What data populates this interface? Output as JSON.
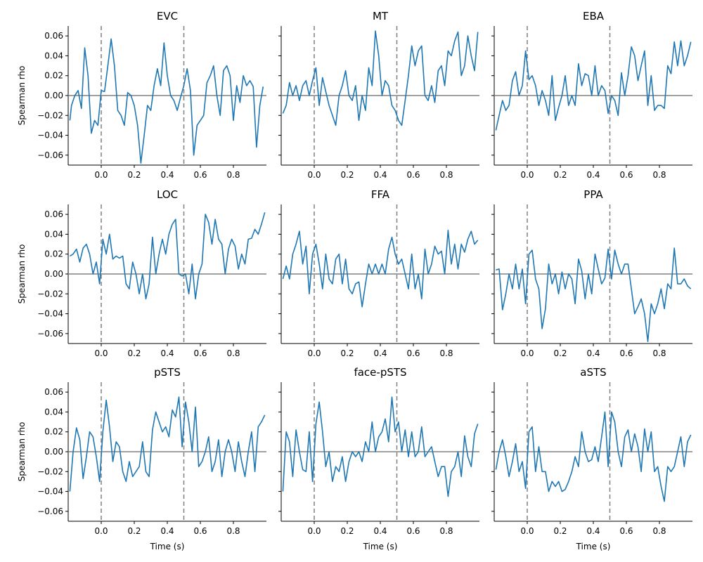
{
  "chart_data": {
    "type": "line",
    "layout": "3x3 grid of subplots, shared y axis, shared x axis",
    "xlabel": "Time (s)",
    "ylabel": "Spearman rho",
    "xlim": [
      -0.2,
      1.0
    ],
    "ylim": [
      -0.07,
      0.07
    ],
    "xticks": [
      0.0,
      0.2,
      0.4,
      0.6,
      0.8
    ],
    "xtick_labels": [
      "0.0",
      "0.2",
      "0.4",
      "0.6",
      "0.8"
    ],
    "yticks": [
      -0.06,
      -0.04,
      -0.02,
      0.0,
      0.02,
      0.04,
      0.06
    ],
    "ytick_labels": [
      "−0.06",
      "−0.04",
      "−0.02",
      "0.00",
      "0.02",
      "0.04",
      "0.06"
    ],
    "reference_line_y": 0.0,
    "event_lines_x": [
      0.0,
      0.5
    ],
    "grid": false,
    "colors": {
      "line": "#1f77b4",
      "reference": "#808080",
      "event": "#808080"
    },
    "panels": [
      {
        "title": "EVC",
        "x": [
          -0.19,
          -0.18,
          -0.16,
          -0.14,
          -0.12,
          -0.1,
          -0.08,
          -0.06,
          -0.04,
          -0.02,
          0.0,
          0.02,
          0.04,
          0.06,
          0.08,
          0.1,
          0.12,
          0.14,
          0.16,
          0.18,
          0.2,
          0.22,
          0.24,
          0.26,
          0.28,
          0.3,
          0.32,
          0.34,
          0.36,
          0.38,
          0.4,
          0.42,
          0.44,
          0.46,
          0.48,
          0.5,
          0.52,
          0.54,
          0.56,
          0.58,
          0.6,
          0.62,
          0.64,
          0.66,
          0.68,
          0.7,
          0.72,
          0.74,
          0.76,
          0.78,
          0.8,
          0.82,
          0.84,
          0.86,
          0.88,
          0.9,
          0.92,
          0.94,
          0.96,
          0.98
        ],
        "y": [
          -0.025,
          -0.01,
          0.0,
          0.005,
          -0.013,
          0.048,
          0.02,
          -0.038,
          -0.025,
          -0.03,
          0.005,
          0.004,
          0.03,
          0.057,
          0.03,
          -0.015,
          -0.02,
          -0.03,
          0.003,
          0.0,
          -0.01,
          -0.03,
          -0.068,
          -0.04,
          -0.01,
          -0.015,
          0.01,
          0.027,
          0.01,
          0.053,
          0.02,
          0.0,
          -0.005,
          -0.015,
          -0.002,
          0.01,
          0.027,
          0.005,
          -0.06,
          -0.03,
          -0.025,
          -0.02,
          0.013,
          0.02,
          0.03,
          0.0,
          -0.02,
          0.025,
          0.03,
          0.02,
          -0.025,
          0.01,
          -0.007,
          0.02,
          0.01,
          0.015,
          0.009,
          -0.052,
          -0.01,
          0.009
        ]
      },
      {
        "title": "MT",
        "x": [
          -0.19,
          -0.17,
          -0.15,
          -0.13,
          -0.11,
          -0.09,
          -0.07,
          -0.05,
          -0.03,
          -0.01,
          0.01,
          0.03,
          0.05,
          0.07,
          0.09,
          0.11,
          0.13,
          0.15,
          0.17,
          0.19,
          0.21,
          0.23,
          0.25,
          0.27,
          0.29,
          0.31,
          0.33,
          0.35,
          0.37,
          0.39,
          0.41,
          0.43,
          0.45,
          0.47,
          0.49,
          0.51,
          0.53,
          0.55,
          0.57,
          0.59,
          0.61,
          0.63,
          0.65,
          0.67,
          0.69,
          0.71,
          0.73,
          0.75,
          0.77,
          0.79,
          0.81,
          0.83,
          0.85,
          0.87,
          0.89,
          0.91,
          0.93,
          0.95,
          0.97,
          0.99
        ],
        "y": [
          -0.018,
          -0.01,
          0.013,
          0.0,
          0.01,
          -0.005,
          0.01,
          0.015,
          0.0,
          0.015,
          0.028,
          -0.01,
          0.018,
          0.004,
          -0.01,
          -0.02,
          -0.03,
          0.0,
          0.01,
          0.025,
          0.0,
          -0.005,
          0.01,
          -0.025,
          0.0,
          -0.015,
          0.028,
          0.01,
          0.065,
          0.04,
          0.0,
          0.015,
          0.01,
          -0.01,
          -0.015,
          -0.025,
          -0.03,
          -0.005,
          0.02,
          0.05,
          0.03,
          0.045,
          0.05,
          0.0,
          -0.005,
          0.01,
          -0.007,
          0.025,
          0.03,
          0.01,
          0.045,
          0.04,
          0.055,
          0.064,
          0.02,
          0.03,
          0.06,
          0.04,
          0.025,
          0.064
        ]
      },
      {
        "title": "EBA",
        "x": [
          -0.19,
          -0.17,
          -0.15,
          -0.13,
          -0.11,
          -0.09,
          -0.07,
          -0.05,
          -0.03,
          -0.01,
          0.01,
          0.03,
          0.05,
          0.07,
          0.09,
          0.11,
          0.13,
          0.15,
          0.17,
          0.19,
          0.21,
          0.23,
          0.25,
          0.27,
          0.29,
          0.31,
          0.33,
          0.35,
          0.37,
          0.39,
          0.41,
          0.43,
          0.45,
          0.47,
          0.49,
          0.51,
          0.53,
          0.55,
          0.57,
          0.59,
          0.61,
          0.63,
          0.65,
          0.67,
          0.69,
          0.71,
          0.73,
          0.75,
          0.77,
          0.79,
          0.81,
          0.83,
          0.85,
          0.87,
          0.89,
          0.91,
          0.93,
          0.95,
          0.97,
          0.99
        ],
        "y": [
          -0.035,
          -0.02,
          -0.005,
          -0.015,
          -0.01,
          0.015,
          0.024,
          0.0,
          0.01,
          0.045,
          0.016,
          0.02,
          0.01,
          -0.01,
          0.005,
          -0.005,
          -0.02,
          0.02,
          -0.025,
          -0.012,
          0.0,
          0.02,
          -0.01,
          0.0,
          -0.01,
          0.032,
          0.01,
          0.022,
          0.02,
          0.0,
          0.03,
          0.0,
          0.01,
          0.005,
          -0.018,
          0.0,
          -0.005,
          -0.02,
          0.023,
          0.0,
          0.02,
          0.049,
          0.04,
          0.015,
          0.03,
          0.045,
          -0.01,
          0.02,
          -0.015,
          -0.01,
          -0.01,
          -0.013,
          0.03,
          0.022,
          0.054,
          0.03,
          0.055,
          0.03,
          0.04,
          0.054
        ]
      },
      {
        "title": "LOC",
        "x": [
          -0.19,
          -0.17,
          -0.15,
          -0.13,
          -0.11,
          -0.09,
          -0.07,
          -0.05,
          -0.03,
          -0.01,
          0.01,
          0.03,
          0.05,
          0.07,
          0.09,
          0.11,
          0.13,
          0.15,
          0.17,
          0.19,
          0.21,
          0.23,
          0.25,
          0.27,
          0.29,
          0.31,
          0.33,
          0.35,
          0.37,
          0.39,
          0.41,
          0.43,
          0.45,
          0.47,
          0.49,
          0.51,
          0.53,
          0.55,
          0.57,
          0.59,
          0.61,
          0.63,
          0.65,
          0.67,
          0.69,
          0.71,
          0.73,
          0.75,
          0.77,
          0.79,
          0.81,
          0.83,
          0.85,
          0.87,
          0.89,
          0.91,
          0.93,
          0.95,
          0.97,
          0.99
        ],
        "y": [
          0.018,
          0.02,
          0.025,
          0.012,
          0.026,
          0.03,
          0.02,
          0.0,
          0.012,
          -0.01,
          0.035,
          0.02,
          0.04,
          0.015,
          0.018,
          0.016,
          0.018,
          -0.01,
          -0.015,
          0.012,
          0.0,
          -0.02,
          0.0,
          -0.025,
          -0.01,
          0.037,
          0.0,
          0.02,
          0.035,
          0.02,
          0.04,
          0.05,
          0.055,
          0.0,
          -0.002,
          0.0,
          -0.02,
          0.01,
          -0.025,
          0.0,
          0.01,
          0.06,
          0.052,
          0.03,
          0.055,
          0.035,
          0.03,
          0.0,
          0.025,
          0.035,
          0.028,
          0.005,
          0.02,
          0.01,
          0.035,
          0.036,
          0.045,
          0.04,
          0.05,
          0.062
        ]
      },
      {
        "title": "FFA",
        "x": [
          -0.19,
          -0.17,
          -0.15,
          -0.13,
          -0.11,
          -0.09,
          -0.07,
          -0.05,
          -0.03,
          -0.01,
          0.01,
          0.03,
          0.05,
          0.07,
          0.09,
          0.11,
          0.13,
          0.15,
          0.17,
          0.19,
          0.21,
          0.23,
          0.25,
          0.27,
          0.29,
          0.31,
          0.33,
          0.35,
          0.37,
          0.39,
          0.41,
          0.43,
          0.45,
          0.47,
          0.49,
          0.51,
          0.53,
          0.55,
          0.57,
          0.59,
          0.61,
          0.63,
          0.65,
          0.67,
          0.69,
          0.71,
          0.73,
          0.75,
          0.77,
          0.79,
          0.81,
          0.83,
          0.85,
          0.87,
          0.89,
          0.91,
          0.93,
          0.95,
          0.97,
          0.99
        ],
        "y": [
          -0.005,
          0.008,
          -0.005,
          0.02,
          0.03,
          0.043,
          0.01,
          0.028,
          -0.02,
          0.02,
          0.03,
          0.01,
          -0.015,
          0.02,
          -0.005,
          -0.01,
          0.015,
          0.02,
          -0.01,
          0.015,
          -0.015,
          -0.02,
          -0.01,
          -0.008,
          -0.033,
          -0.01,
          0.01,
          0.0,
          0.01,
          0.0,
          0.01,
          0.0,
          0.025,
          0.037,
          0.02,
          0.01,
          0.015,
          0.0,
          -0.015,
          0.02,
          -0.015,
          0.0,
          -0.025,
          0.025,
          0.0,
          0.01,
          0.028,
          0.02,
          0.023,
          0.0,
          0.044,
          0.01,
          0.03,
          0.005,
          0.03,
          0.022,
          0.035,
          0.043,
          0.03,
          0.034
        ]
      },
      {
        "title": "PPA",
        "x": [
          -0.19,
          -0.17,
          -0.15,
          -0.13,
          -0.11,
          -0.09,
          -0.07,
          -0.05,
          -0.03,
          -0.01,
          0.01,
          0.03,
          0.05,
          0.07,
          0.09,
          0.11,
          0.13,
          0.15,
          0.17,
          0.19,
          0.21,
          0.23,
          0.25,
          0.27,
          0.29,
          0.31,
          0.33,
          0.35,
          0.37,
          0.39,
          0.41,
          0.43,
          0.45,
          0.47,
          0.49,
          0.51,
          0.53,
          0.55,
          0.57,
          0.59,
          0.61,
          0.63,
          0.65,
          0.67,
          0.69,
          0.71,
          0.73,
          0.75,
          0.77,
          0.79,
          0.81,
          0.83,
          0.85,
          0.87,
          0.89,
          0.91,
          0.93,
          0.95,
          0.97,
          0.99
        ],
        "y": [
          0.004,
          0.005,
          -0.036,
          -0.02,
          0.0,
          -0.015,
          0.01,
          -0.015,
          0.005,
          -0.03,
          0.02,
          0.024,
          -0.005,
          -0.015,
          -0.055,
          -0.035,
          0.01,
          -0.01,
          0.0,
          -0.02,
          0.002,
          -0.015,
          0.0,
          -0.005,
          -0.03,
          0.015,
          0.003,
          -0.025,
          0.0,
          -0.02,
          0.02,
          0.005,
          -0.01,
          -0.004,
          0.025,
          -0.005,
          0.024,
          0.01,
          0.0,
          0.01,
          0.01,
          -0.015,
          -0.04,
          -0.033,
          -0.025,
          -0.04,
          -0.068,
          -0.03,
          -0.04,
          -0.03,
          -0.015,
          -0.035,
          -0.01,
          -0.015,
          0.026,
          -0.01,
          -0.01,
          -0.005,
          -0.012,
          -0.015
        ]
      },
      {
        "title": "pSTS",
        "x": [
          -0.19,
          -0.17,
          -0.15,
          -0.13,
          -0.11,
          -0.09,
          -0.07,
          -0.05,
          -0.03,
          -0.01,
          0.01,
          0.03,
          0.05,
          0.07,
          0.09,
          0.11,
          0.13,
          0.15,
          0.17,
          0.19,
          0.21,
          0.23,
          0.25,
          0.27,
          0.29,
          0.31,
          0.33,
          0.35,
          0.37,
          0.39,
          0.41,
          0.43,
          0.45,
          0.47,
          0.49,
          0.51,
          0.53,
          0.55,
          0.57,
          0.59,
          0.61,
          0.63,
          0.65,
          0.67,
          0.69,
          0.71,
          0.73,
          0.75,
          0.77,
          0.79,
          0.81,
          0.83,
          0.85,
          0.87,
          0.89,
          0.91,
          0.93,
          0.95,
          0.97,
          0.99
        ],
        "y": [
          -0.04,
          0.0,
          0.024,
          0.012,
          -0.027,
          -0.005,
          0.02,
          0.015,
          -0.005,
          -0.03,
          0.02,
          0.052,
          0.025,
          -0.01,
          0.01,
          0.005,
          -0.02,
          -0.03,
          -0.01,
          -0.025,
          -0.02,
          -0.015,
          0.01,
          -0.02,
          -0.025,
          0.022,
          0.04,
          0.03,
          0.02,
          0.025,
          0.015,
          0.042,
          0.035,
          0.055,
          0.005,
          0.05,
          0.03,
          0.0,
          0.045,
          -0.015,
          -0.01,
          0.0,
          0.015,
          -0.02,
          -0.01,
          0.012,
          -0.025,
          0.0,
          0.012,
          0.0,
          -0.02,
          0.01,
          -0.01,
          -0.025,
          0.0,
          0.02,
          -0.02,
          0.025,
          0.03,
          0.037
        ]
      },
      {
        "title": "face-pSTS",
        "x": [
          -0.19,
          -0.17,
          -0.15,
          -0.13,
          -0.11,
          -0.09,
          -0.07,
          -0.05,
          -0.03,
          -0.01,
          0.01,
          0.03,
          0.05,
          0.07,
          0.09,
          0.11,
          0.13,
          0.15,
          0.17,
          0.19,
          0.21,
          0.23,
          0.25,
          0.27,
          0.29,
          0.31,
          0.33,
          0.35,
          0.37,
          0.39,
          0.41,
          0.43,
          0.45,
          0.47,
          0.49,
          0.51,
          0.53,
          0.55,
          0.57,
          0.59,
          0.61,
          0.63,
          0.65,
          0.67,
          0.69,
          0.71,
          0.73,
          0.75,
          0.77,
          0.79,
          0.81,
          0.83,
          0.85,
          0.87,
          0.89,
          0.91,
          0.93,
          0.95,
          0.97,
          0.99
        ],
        "y": [
          -0.04,
          0.02,
          0.01,
          -0.025,
          0.022,
          0.0,
          -0.018,
          -0.02,
          0.02,
          -0.03,
          0.028,
          0.05,
          0.02,
          -0.015,
          0.0,
          -0.03,
          -0.015,
          -0.02,
          -0.005,
          -0.03,
          -0.01,
          0.0,
          -0.005,
          0.0,
          -0.01,
          0.01,
          0.0,
          0.03,
          0.0,
          0.015,
          0.02,
          0.033,
          0.01,
          0.055,
          0.02,
          0.03,
          0.0,
          0.022,
          -0.005,
          0.02,
          -0.005,
          0.0,
          0.025,
          -0.005,
          0.0,
          0.005,
          -0.01,
          -0.025,
          -0.015,
          -0.015,
          -0.045,
          -0.02,
          -0.015,
          0.0,
          -0.025,
          0.016,
          -0.005,
          -0.015,
          0.018,
          0.028
        ]
      },
      {
        "title": "aSTS",
        "x": [
          -0.19,
          -0.17,
          -0.15,
          -0.13,
          -0.11,
          -0.09,
          -0.07,
          -0.05,
          -0.03,
          -0.01,
          0.01,
          0.03,
          0.05,
          0.07,
          0.09,
          0.11,
          0.13,
          0.15,
          0.17,
          0.19,
          0.21,
          0.23,
          0.25,
          0.27,
          0.29,
          0.31,
          0.33,
          0.35,
          0.37,
          0.39,
          0.41,
          0.43,
          0.45,
          0.47,
          0.49,
          0.51,
          0.53,
          0.55,
          0.57,
          0.59,
          0.61,
          0.63,
          0.65,
          0.67,
          0.69,
          0.71,
          0.73,
          0.75,
          0.77,
          0.79,
          0.81,
          0.83,
          0.85,
          0.87,
          0.89,
          0.91,
          0.93,
          0.95,
          0.97,
          0.99
        ],
        "y": [
          -0.018,
          0.0,
          0.012,
          -0.005,
          -0.025,
          -0.01,
          0.008,
          -0.02,
          -0.01,
          -0.037,
          0.02,
          0.025,
          -0.02,
          0.005,
          -0.02,
          -0.02,
          -0.04,
          -0.03,
          -0.035,
          -0.03,
          -0.04,
          -0.038,
          -0.03,
          -0.02,
          -0.005,
          -0.015,
          0.02,
          0.0,
          -0.01,
          -0.008,
          0.005,
          -0.01,
          0.015,
          0.04,
          -0.015,
          0.04,
          0.03,
          0.0,
          -0.015,
          0.015,
          0.022,
          0.0,
          0.018,
          0.005,
          -0.02,
          0.023,
          0.0,
          0.02,
          -0.02,
          -0.015,
          -0.035,
          -0.05,
          -0.015,
          -0.02,
          -0.015,
          0.0,
          0.015,
          -0.015,
          0.01,
          0.017
        ]
      }
    ]
  }
}
